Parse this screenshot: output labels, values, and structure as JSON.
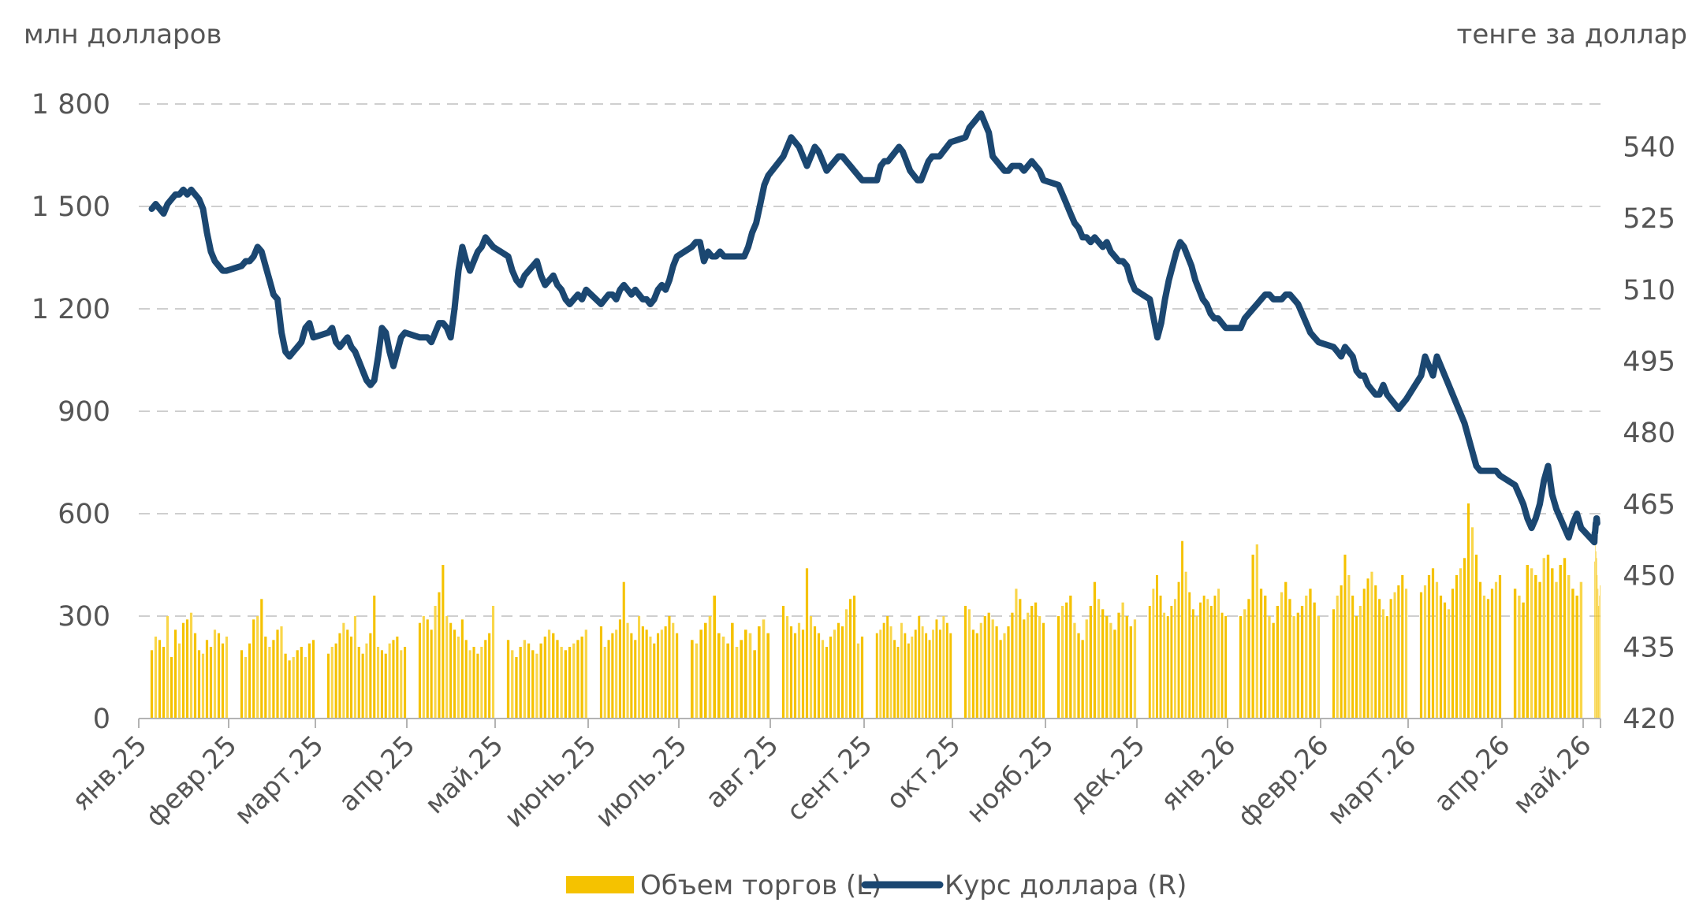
{
  "chart_data": {
    "type": "bar+line",
    "left_axis_title": "млн долларов",
    "right_axis_title": "тенге за доллар",
    "left_ticks": [
      "0",
      "300",
      "600",
      "900",
      "1 200",
      "1 500",
      "1 800"
    ],
    "right_ticks": [
      "420",
      "435",
      "450",
      "465",
      "480",
      "495",
      "510",
      "525",
      "540"
    ],
    "ylim_left": [
      0,
      1800
    ],
    "ylim_right": [
      420,
      549
    ],
    "x_labels": [
      "янв.25",
      "февр.25",
      "март.25",
      "апр.25",
      "май.25",
      "июнь.25",
      "июль.25",
      "авг.25",
      "сент.25",
      "окт.25",
      "нояб.25",
      "дек.25",
      "янв.26",
      "февр.26",
      "март.26",
      "апр.26",
      "май.26"
    ],
    "grid": "horizontal-dashed",
    "legend_position": "bottom-center",
    "series": [
      {
        "name": "Объем торгов (L)",
        "kind": "bar",
        "axis": "left",
        "color": "#F5C200",
        "monthly_values": [
          [
            200,
            240,
            230,
            210,
            300,
            180,
            260,
            220,
            280,
            290,
            310,
            250,
            200,
            190,
            230,
            210,
            260,
            250,
            220,
            240
          ],
          [
            200,
            180,
            220,
            290,
            300,
            350,
            240,
            210,
            230,
            260,
            270,
            190,
            170,
            180,
            200,
            210,
            180,
            220,
            230
          ],
          [
            190,
            210,
            220,
            250,
            280,
            260,
            240,
            300,
            210,
            190,
            220,
            250,
            360,
            210,
            200,
            190,
            220,
            230,
            240,
            200,
            210
          ],
          [
            280,
            300,
            290,
            260,
            330,
            370,
            450,
            300,
            280,
            260,
            240,
            290,
            230,
            200,
            210,
            190,
            210,
            230,
            250,
            330
          ],
          [
            230,
            200,
            180,
            210,
            230,
            220,
            200,
            190,
            220,
            240,
            260,
            250,
            230,
            210,
            200,
            210,
            220,
            230,
            240,
            260
          ],
          [
            270,
            210,
            230,
            250,
            260,
            290,
            400,
            280,
            250,
            230,
            300,
            270,
            260,
            240,
            220,
            250,
            260,
            270,
            300,
            280,
            250
          ],
          [
            230,
            220,
            260,
            280,
            300,
            360,
            250,
            240,
            220,
            280,
            210,
            230,
            260,
            250,
            200,
            270,
            290,
            250
          ],
          [
            330,
            300,
            270,
            250,
            280,
            260,
            440,
            300,
            270,
            250,
            230,
            210,
            240,
            260,
            280,
            270,
            320,
            350,
            360,
            220,
            240
          ],
          [
            250,
            260,
            280,
            300,
            270,
            230,
            210,
            280,
            250,
            220,
            240,
            260,
            300,
            270,
            250,
            230,
            260,
            290,
            260,
            300,
            280,
            250
          ],
          [
            330,
            320,
            260,
            250,
            280,
            300,
            310,
            290,
            270,
            230,
            250,
            270,
            310,
            380,
            350,
            290,
            310,
            330,
            340,
            300,
            280
          ],
          [
            300,
            330,
            340,
            360,
            280,
            250,
            230,
            290,
            330,
            400,
            350,
            320,
            300,
            280,
            260,
            310,
            340,
            300,
            270,
            290
          ],
          [
            330,
            380,
            420,
            360,
            310,
            300,
            330,
            350,
            400,
            520,
            430,
            370,
            320,
            300,
            340,
            360,
            350,
            330,
            360,
            380,
            310,
            300
          ],
          [
            300,
            320,
            350,
            480,
            510,
            380,
            360,
            300,
            280,
            330,
            370,
            400,
            350,
            300,
            310,
            330,
            360,
            380,
            340,
            300
          ],
          [
            320,
            360,
            390,
            480,
            420,
            360,
            300,
            330,
            380,
            410,
            430,
            390,
            350,
            320,
            300,
            350,
            370,
            390,
            420,
            380
          ],
          [
            370,
            390,
            420,
            440,
            400,
            360,
            340,
            320,
            380,
            420,
            440,
            470,
            630,
            560,
            480,
            400,
            360,
            350,
            380,
            400,
            420
          ],
          [
            380,
            360,
            340,
            450,
            440,
            420,
            400,
            470,
            480,
            440,
            400,
            450,
            470,
            420,
            380,
            360,
            400
          ],
          [
            460,
            510,
            490,
            470,
            420,
            380,
            330,
            360,
            390
          ]
        ]
      },
      {
        "name": "Курс доллара (R)",
        "kind": "line",
        "axis": "right",
        "color": "#1B4771",
        "monthly_values": [
          [
            527,
            528,
            527,
            526,
            528,
            529,
            530,
            530,
            531,
            530,
            531,
            530,
            529,
            527,
            522,
            518,
            516,
            515,
            514,
            514
          ],
          [
            515,
            516,
            516,
            517,
            519,
            518,
            515,
            512,
            509,
            508,
            501,
            497,
            496,
            497,
            498,
            499,
            502,
            503,
            500
          ],
          [
            501,
            502,
            499,
            498,
            499,
            500,
            498,
            497,
            495,
            493,
            491,
            490,
            491,
            496,
            502,
            501,
            497,
            494,
            497,
            500,
            501
          ],
          [
            500,
            500,
            500,
            499,
            501,
            503,
            503,
            502,
            500,
            506,
            514,
            519,
            516,
            514,
            516,
            518,
            519,
            521,
            520,
            519
          ],
          [
            517,
            514,
            512,
            511,
            513,
            514,
            515,
            516,
            513,
            511,
            512,
            513,
            511,
            510,
            508,
            507,
            508,
            509,
            508,
            510
          ],
          [
            507,
            508,
            509,
            509,
            508,
            510,
            511,
            510,
            509,
            510,
            509,
            508,
            508,
            507,
            508,
            510,
            511,
            510,
            512,
            515,
            517
          ],
          [
            519,
            520,
            520,
            516,
            518,
            517,
            517,
            518,
            517,
            517,
            517,
            517,
            517,
            517,
            519,
            522,
            524,
            528,
            532,
            534
          ],
          [
            538,
            540,
            542,
            541,
            540,
            538,
            536,
            538,
            540,
            539,
            537,
            535,
            536,
            537,
            538,
            538,
            537,
            536,
            535,
            534,
            533
          ],
          [
            533,
            536,
            537,
            537,
            538,
            539,
            540,
            539,
            537,
            535,
            534,
            533,
            533,
            535,
            537,
            538,
            538,
            538,
            539,
            540,
            541
          ],
          [
            542,
            544,
            545,
            546,
            547,
            545,
            543,
            538,
            537,
            536,
            535,
            535,
            536,
            536,
            536,
            535,
            536,
            537,
            536,
            535,
            533
          ],
          [
            532,
            530,
            528,
            526,
            524,
            523,
            521,
            521,
            520,
            521,
            520,
            519,
            520,
            518,
            517,
            516,
            516,
            515,
            512,
            510
          ],
          [
            508,
            504,
            500,
            503,
            508,
            512,
            515,
            518,
            520,
            519,
            517,
            515,
            512,
            510,
            508,
            507,
            505,
            504,
            504,
            503,
            502
          ],
          [
            502,
            504,
            505,
            506,
            507,
            508,
            509,
            509,
            508,
            508,
            508,
            509,
            509,
            508,
            507,
            505,
            503,
            501,
            500,
            499
          ],
          [
            498,
            497,
            496,
            498,
            497,
            496,
            493,
            492,
            492,
            490,
            489,
            488,
            488,
            490,
            488,
            487,
            486,
            485,
            486,
            487
          ],
          [
            492,
            496,
            494,
            492,
            496,
            494,
            492,
            490,
            488,
            486,
            484,
            482,
            479,
            476,
            473,
            472,
            472,
            472,
            472,
            472,
            471
          ],
          [
            469,
            467,
            465,
            462,
            460,
            462,
            465,
            470,
            473,
            467,
            464,
            462,
            460,
            458,
            461,
            463,
            460
          ],
          [
            457,
            459,
            459,
            460,
            461,
            461,
            462,
            462,
            461
          ]
        ]
      }
    ]
  }
}
